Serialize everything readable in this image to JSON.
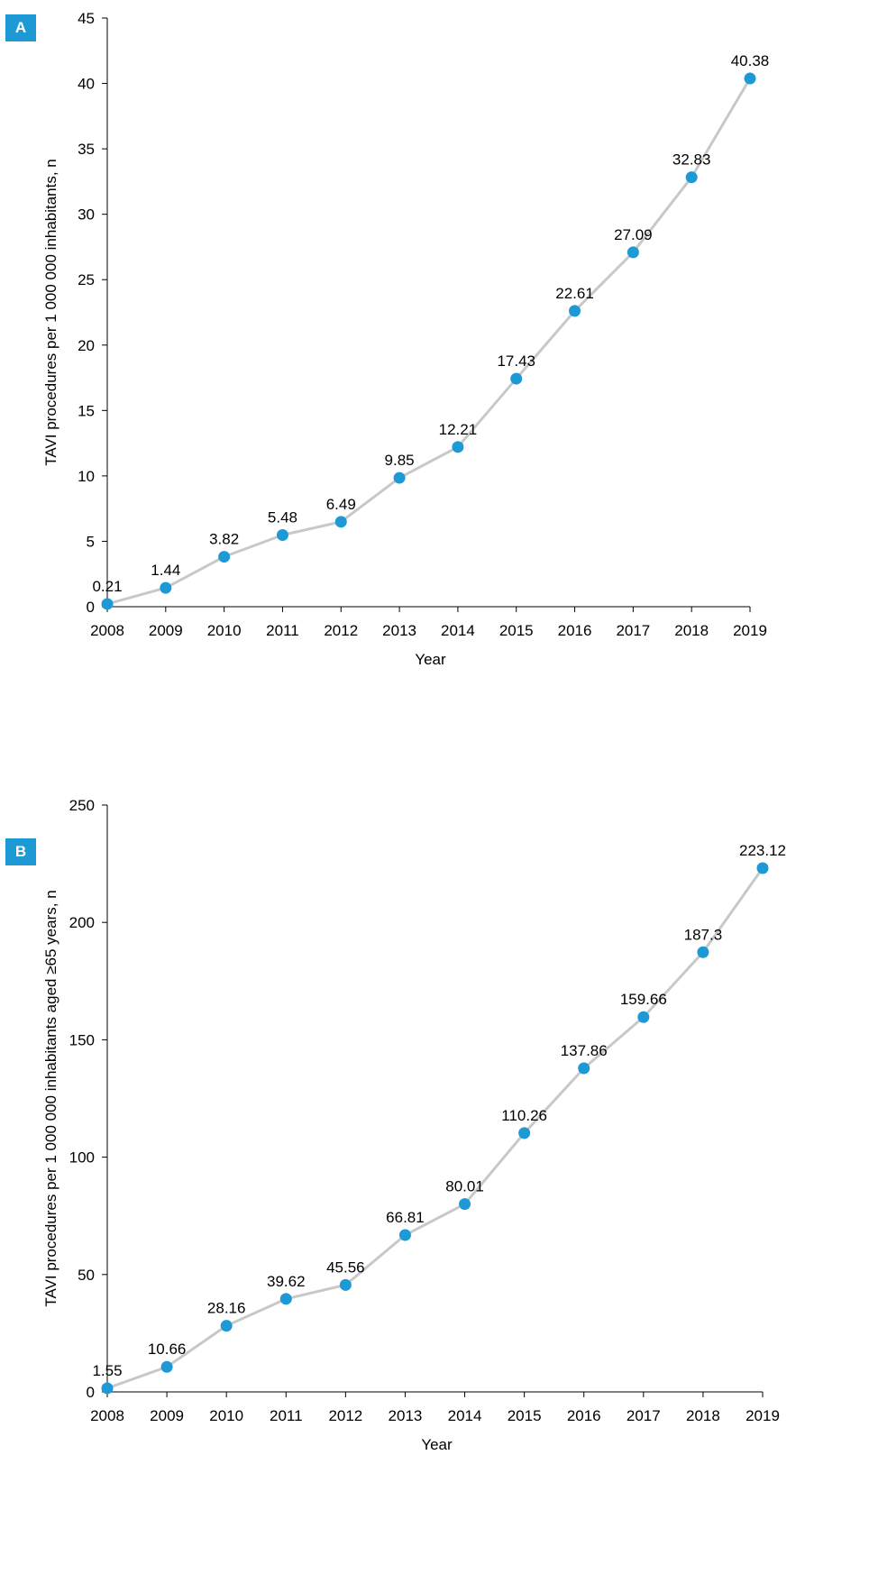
{
  "chart_data": [
    {
      "panel": "A",
      "type": "line",
      "categories": [
        "2008",
        "2009",
        "2010",
        "2011",
        "2012",
        "2013",
        "2014",
        "2015",
        "2016",
        "2017",
        "2018",
        "2019"
      ],
      "values": [
        0.21,
        1.44,
        3.82,
        5.48,
        6.49,
        9.85,
        12.21,
        17.43,
        22.61,
        27.09,
        32.83,
        40.38
      ],
      "data_labels": [
        "0.21",
        "1.44",
        "3.82",
        "5.48",
        "6.49",
        "9.85",
        "12.21",
        "17.43",
        "22.61",
        "27.09",
        "32.83",
        "40.38"
      ],
      "yticks": [
        0,
        5,
        10,
        15,
        20,
        25,
        30,
        35,
        40,
        45
      ],
      "ylim": [
        0,
        45
      ],
      "xlabel": "Year",
      "ylabel": "TAVI procedures per 1 000 000 inhabitants, n",
      "grid": false,
      "line_color": "#c8c8c8",
      "marker_color": "#1d9ad6"
    },
    {
      "panel": "B",
      "type": "line",
      "categories": [
        "2008",
        "2009",
        "2010",
        "2011",
        "2012",
        "2013",
        "2014",
        "2015",
        "2016",
        "2017",
        "2018",
        "2019"
      ],
      "values": [
        1.55,
        10.66,
        28.16,
        39.62,
        45.56,
        66.81,
        80.01,
        110.26,
        137.86,
        159.66,
        187.3,
        223.12
      ],
      "data_labels": [
        "1.55",
        "10.66",
        "28.16",
        "39.62",
        "45.56",
        "66.81",
        "80.01",
        "110.26",
        "137.86",
        "159.66",
        "187.3",
        "223.12"
      ],
      "yticks": [
        0,
        50,
        100,
        150,
        200,
        250
      ],
      "ylim": [
        0,
        250
      ],
      "xlabel": "Year",
      "ylabel": "TAVI procedures per 1 000 000 inhabitants aged ≥65 years, n",
      "grid": false,
      "line_color": "#c8c8c8",
      "marker_color": "#1d9ad6"
    }
  ]
}
